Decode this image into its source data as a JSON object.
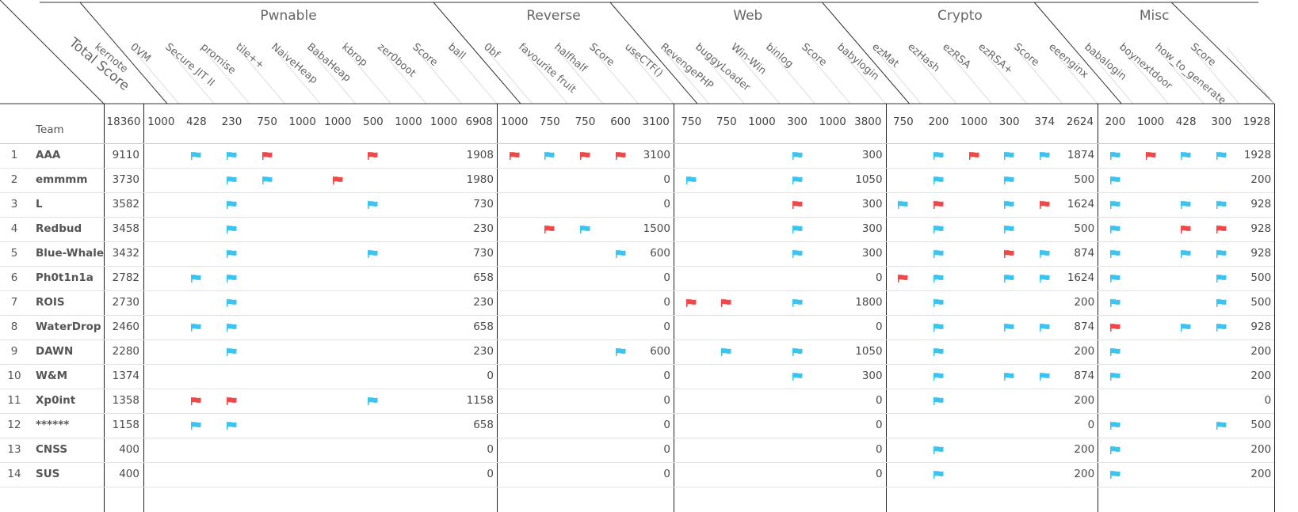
{
  "header": {
    "total_label": "Total Score",
    "team_label": "Team",
    "grand_max": "18360"
  },
  "categories": [
    {
      "name": "Pwnable",
      "challenges": [
        {
          "name": "kernote",
          "max": "1000"
        },
        {
          "name": "0VM",
          "max": "428"
        },
        {
          "name": "Secure JIT II",
          "max": "230"
        },
        {
          "name": "promise",
          "max": "750"
        },
        {
          "name": "tile++",
          "max": "1000"
        },
        {
          "name": "NaiveHeap",
          "max": "1000"
        },
        {
          "name": "BabaHeap",
          "max": "500"
        },
        {
          "name": "kbrop",
          "max": "1000"
        },
        {
          "name": "zer0boot",
          "max": "1000"
        }
      ],
      "score_label": "Score",
      "score_max": "6908"
    },
    {
      "name": "Reverse",
      "challenges": [
        {
          "name": "ball",
          "max": "1000"
        },
        {
          "name": "0bf",
          "max": "750"
        },
        {
          "name": "favourite fruit",
          "max": "750"
        },
        {
          "name": "halfhalf",
          "max": "600"
        }
      ],
      "score_label": "Score",
      "score_max": "3100"
    },
    {
      "name": "Web",
      "challenges": [
        {
          "name": "useCTF()",
          "max": "750"
        },
        {
          "name": "RevengePHP",
          "max": "750"
        },
        {
          "name": "buggyLoader",
          "max": "1000"
        },
        {
          "name": "Win-Win",
          "max": "300"
        },
        {
          "name": "binlog",
          "max": "1000"
        }
      ],
      "score_label": "Score",
      "score_max": "3800"
    },
    {
      "name": "Crypto",
      "challenges": [
        {
          "name": "babylogin",
          "max": "750"
        },
        {
          "name": "ezMat",
          "max": "200"
        },
        {
          "name": "ezHash",
          "max": "1000"
        },
        {
          "name": "ezRSA",
          "max": "300"
        },
        {
          "name": "ezRSA+",
          "max": "374"
        }
      ],
      "score_label": "Score",
      "score_max": "2624"
    },
    {
      "name": "Misc",
      "challenges": [
        {
          "name": "eeenginx",
          "max": "200"
        },
        {
          "name": "babalogin",
          "max": "1000"
        },
        {
          "name": "boynextdoor",
          "max": "428"
        },
        {
          "name": "how_to_generate",
          "max": "300"
        }
      ],
      "score_label": "Score",
      "score_max": "1928"
    }
  ],
  "colors": {
    "flag_blue": "#3cc4f0",
    "flag_red": "#f04848",
    "line": "#e2e2e2",
    "divider": "#222222"
  },
  "teams": [
    {
      "rank": "1",
      "name": "AAA",
      "total": "9110",
      "flags": [
        [
          "",
          "b",
          "b",
          "r",
          "",
          "",
          "r",
          "",
          ""
        ],
        [
          "r",
          "b",
          "r",
          "r"
        ],
        [
          "",
          "",
          "",
          "b",
          ""
        ],
        [
          "",
          "b",
          "r",
          "b",
          "b"
        ],
        [
          "b",
          "r",
          "b",
          "b"
        ]
      ],
      "scores": [
        "1908",
        "3100",
        "300",
        "1874",
        "1928"
      ]
    },
    {
      "rank": "2",
      "name": "emmmm",
      "total": "3730",
      "flags": [
        [
          "",
          "",
          "b",
          "b",
          "",
          "r",
          "",
          "",
          ""
        ],
        [
          "",
          "",
          "",
          ""
        ],
        [
          "b",
          "",
          "",
          "b",
          ""
        ],
        [
          "",
          "b",
          "",
          "b",
          ""
        ],
        [
          "b",
          "",
          "",
          ""
        ]
      ],
      "scores": [
        "1980",
        "0",
        "1050",
        "500",
        "200"
      ]
    },
    {
      "rank": "3",
      "name": "L",
      "total": "3582",
      "flags": [
        [
          "",
          "",
          "b",
          "",
          "",
          "",
          "b",
          "",
          ""
        ],
        [
          "",
          "",
          "",
          ""
        ],
        [
          "",
          "",
          "",
          "r",
          ""
        ],
        [
          "b",
          "r",
          "",
          "b",
          "r"
        ],
        [
          "b",
          "",
          "b",
          "b"
        ]
      ],
      "scores": [
        "730",
        "0",
        "300",
        "1624",
        "928"
      ]
    },
    {
      "rank": "4",
      "name": "Redbud",
      "total": "3458",
      "flags": [
        [
          "",
          "",
          "b",
          "",
          "",
          "",
          "",
          "",
          ""
        ],
        [
          "",
          "r",
          "b",
          ""
        ],
        [
          "",
          "",
          "",
          "b",
          ""
        ],
        [
          "",
          "b",
          "",
          "b",
          ""
        ],
        [
          "b",
          "",
          "r",
          "r"
        ]
      ],
      "scores": [
        "230",
        "1500",
        "300",
        "500",
        "928"
      ]
    },
    {
      "rank": "5",
      "name": "Blue-Whale",
      "total": "3432",
      "flags": [
        [
          "",
          "",
          "b",
          "",
          "",
          "",
          "b",
          "",
          ""
        ],
        [
          "",
          "",
          "",
          "b"
        ],
        [
          "",
          "",
          "",
          "b",
          ""
        ],
        [
          "",
          "b",
          "",
          "r",
          "b"
        ],
        [
          "b",
          "",
          "b",
          "b"
        ]
      ],
      "scores": [
        "730",
        "600",
        "300",
        "874",
        "928"
      ]
    },
    {
      "rank": "6",
      "name": "Ph0t1n1a",
      "total": "2782",
      "flags": [
        [
          "",
          "b",
          "b",
          "",
          "",
          "",
          "",
          "",
          ""
        ],
        [
          "",
          "",
          "",
          ""
        ],
        [
          "",
          "",
          "",
          "",
          ""
        ],
        [
          "r",
          "b",
          "",
          "b",
          "b"
        ],
        [
          "b",
          "",
          "",
          "b"
        ]
      ],
      "scores": [
        "658",
        "0",
        "0",
        "1624",
        "500"
      ]
    },
    {
      "rank": "7",
      "name": "ROIS",
      "total": "2730",
      "flags": [
        [
          "",
          "",
          "b",
          "",
          "",
          "",
          "",
          "",
          ""
        ],
        [
          "",
          "",
          "",
          ""
        ],
        [
          "r",
          "r",
          "",
          "b",
          ""
        ],
        [
          "",
          "b",
          "",
          "",
          ""
        ],
        [
          "b",
          "",
          "",
          "b"
        ]
      ],
      "scores": [
        "230",
        "0",
        "1800",
        "200",
        "500"
      ]
    },
    {
      "rank": "8",
      "name": "WaterDrop",
      "total": "2460",
      "flags": [
        [
          "",
          "b",
          "b",
          "",
          "",
          "",
          "",
          "",
          ""
        ],
        [
          "",
          "",
          "",
          ""
        ],
        [
          "",
          "",
          "",
          "",
          ""
        ],
        [
          "",
          "b",
          "",
          "b",
          "b"
        ],
        [
          "r",
          "",
          "b",
          "b"
        ]
      ],
      "scores": [
        "658",
        "0",
        "0",
        "874",
        "928"
      ]
    },
    {
      "rank": "9",
      "name": "DAWN",
      "total": "2280",
      "flags": [
        [
          "",
          "",
          "b",
          "",
          "",
          "",
          "",
          "",
          ""
        ],
        [
          "",
          "",
          "",
          "b"
        ],
        [
          "",
          "b",
          "",
          "b",
          ""
        ],
        [
          "",
          "b",
          "",
          "",
          ""
        ],
        [
          "b",
          "",
          "",
          ""
        ]
      ],
      "scores": [
        "230",
        "600",
        "1050",
        "200",
        "200"
      ]
    },
    {
      "rank": "10",
      "name": "W&M",
      "total": "1374",
      "flags": [
        [
          "",
          "",
          "",
          "",
          "",
          "",
          "",
          "",
          ""
        ],
        [
          "",
          "",
          "",
          ""
        ],
        [
          "",
          "",
          "",
          "b",
          ""
        ],
        [
          "",
          "b",
          "",
          "b",
          "b"
        ],
        [
          "b",
          "",
          "",
          ""
        ]
      ],
      "scores": [
        "0",
        "0",
        "300",
        "874",
        "200"
      ]
    },
    {
      "rank": "11",
      "name": "Xp0int",
      "total": "1358",
      "flags": [
        [
          "",
          "r",
          "r",
          "",
          "",
          "",
          "b",
          "",
          ""
        ],
        [
          "",
          "",
          "",
          ""
        ],
        [
          "",
          "",
          "",
          "",
          ""
        ],
        [
          "",
          "b",
          "",
          "",
          ""
        ],
        [
          "",
          "",
          "",
          ""
        ]
      ],
      "scores": [
        "1158",
        "0",
        "0",
        "200",
        "0"
      ]
    },
    {
      "rank": "12",
      "name": "******",
      "total": "1158",
      "flags": [
        [
          "",
          "b",
          "b",
          "",
          "",
          "",
          "",
          "",
          ""
        ],
        [
          "",
          "",
          "",
          ""
        ],
        [
          "",
          "",
          "",
          "",
          ""
        ],
        [
          "",
          "",
          "",
          "",
          ""
        ],
        [
          "b",
          "",
          "",
          "b"
        ]
      ],
      "scores": [
        "658",
        "0",
        "0",
        "0",
        "500"
      ]
    },
    {
      "rank": "13",
      "name": "CNSS",
      "total": "400",
      "flags": [
        [
          "",
          "",
          "",
          "",
          "",
          "",
          "",
          "",
          ""
        ],
        [
          "",
          "",
          "",
          ""
        ],
        [
          "",
          "",
          "",
          "",
          ""
        ],
        [
          "",
          "b",
          "",
          "",
          ""
        ],
        [
          "b",
          "",
          "",
          ""
        ]
      ],
      "scores": [
        "0",
        "0",
        "0",
        "200",
        "200"
      ]
    },
    {
      "rank": "14",
      "name": "SUS",
      "total": "400",
      "flags": [
        [
          "",
          "",
          "",
          "",
          "",
          "",
          "",
          "",
          ""
        ],
        [
          "",
          "",
          "",
          ""
        ],
        [
          "",
          "",
          "",
          "",
          ""
        ],
        [
          "",
          "b",
          "",
          "",
          ""
        ],
        [
          "b",
          "",
          "",
          ""
        ]
      ],
      "scores": [
        "0",
        "0",
        "0",
        "200",
        "200"
      ]
    }
  ]
}
